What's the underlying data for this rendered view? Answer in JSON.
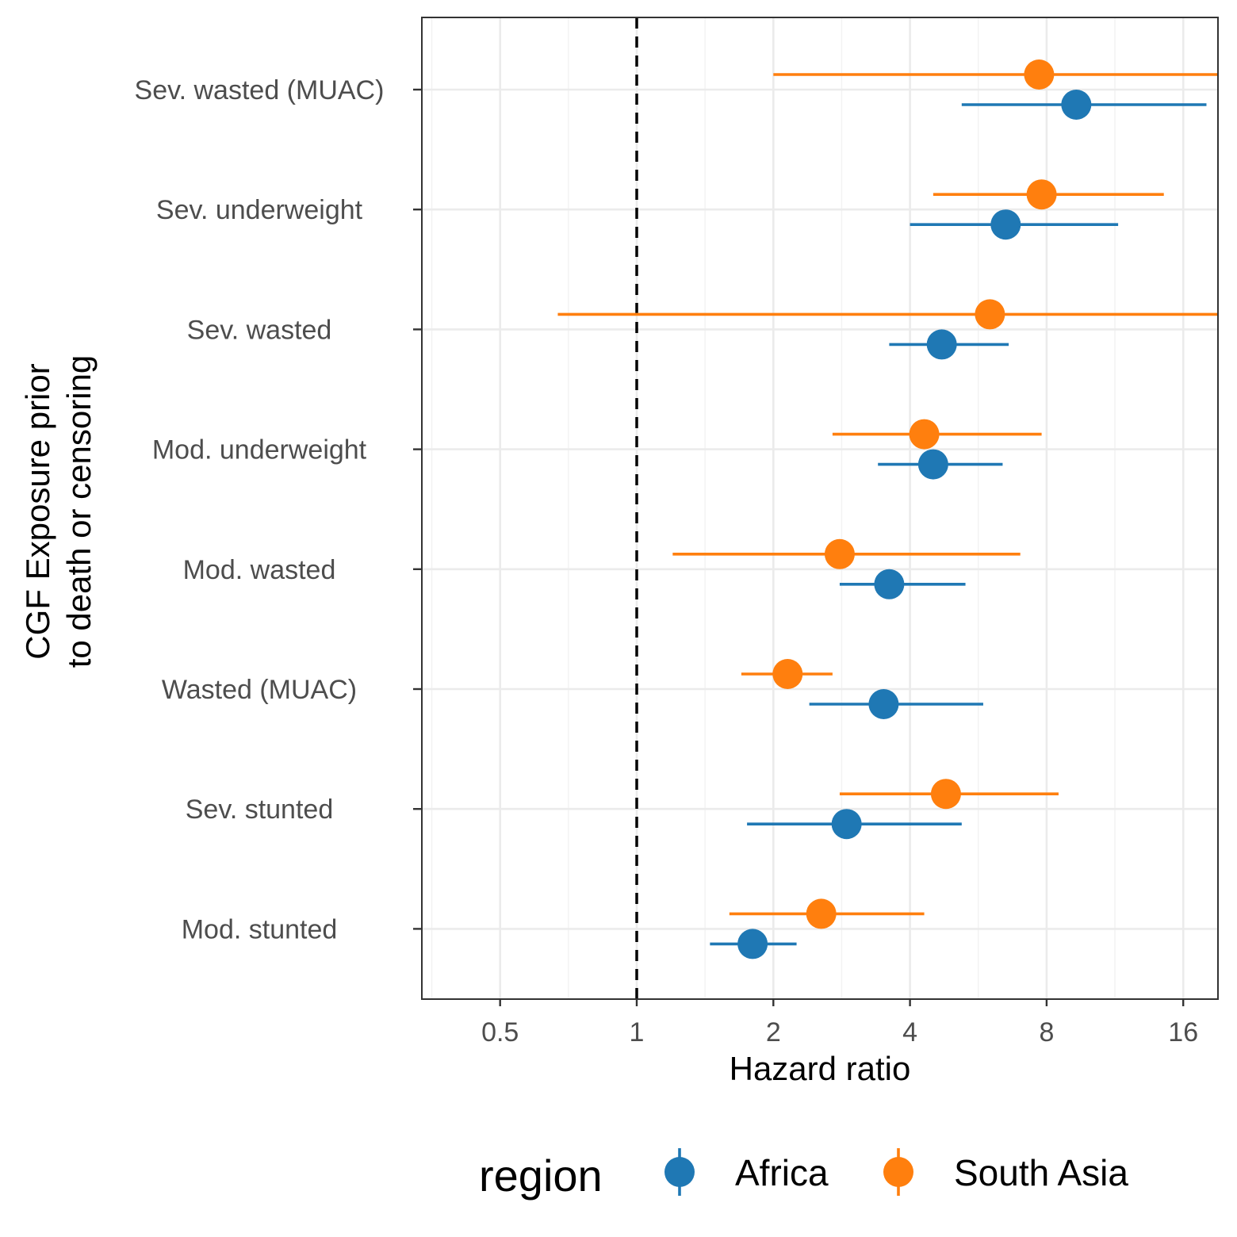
{
  "chart_data": {
    "type": "scatter",
    "subtype": "forest-plot",
    "title": "",
    "xlabel": "Hazard ratio",
    "ylabel_lines": [
      "CGF Exposure prior",
      "to death or censoring"
    ],
    "x_scale": "log2",
    "xlim": [
      0.4,
      20
    ],
    "x_ticks": [
      {
        "value": 0.5,
        "label": "0.5"
      },
      {
        "value": 1,
        "label": "1"
      },
      {
        "value": 2,
        "label": "2"
      },
      {
        "value": 4,
        "label": "4"
      },
      {
        "value": 8,
        "label": "8"
      },
      {
        "value": 16,
        "label": "16"
      }
    ],
    "reference_line": {
      "value": 1,
      "style": "dashed"
    },
    "grid": true,
    "categories": [
      "Sev. wasted (MUAC)",
      "Sev. underweight",
      "Sev. wasted",
      "Mod. underweight",
      "Mod. wasted",
      "Wasted (MUAC)",
      "Sev. stunted",
      "Mod. stunted"
    ],
    "series": [
      {
        "name": "Africa",
        "color": "#1f78b4",
        "points": [
          {
            "category": "Sev. wasted (MUAC)",
            "est": 9.3,
            "lo": 5.2,
            "hi": 18.0
          },
          {
            "category": "Sev. underweight",
            "est": 6.5,
            "lo": 4.0,
            "hi": 11.5
          },
          {
            "category": "Sev. wasted",
            "est": 4.7,
            "lo": 3.6,
            "hi": 6.6
          },
          {
            "category": "Mod. underweight",
            "est": 4.5,
            "lo": 3.4,
            "hi": 6.4
          },
          {
            "category": "Mod. wasted",
            "est": 3.6,
            "lo": 2.8,
            "hi": 5.3
          },
          {
            "category": "Wasted (MUAC)",
            "est": 3.5,
            "lo": 2.4,
            "hi": 5.8
          },
          {
            "category": "Sev. stunted",
            "est": 2.9,
            "lo": 1.75,
            "hi": 5.2
          },
          {
            "category": "Mod. stunted",
            "est": 1.8,
            "lo": 1.45,
            "hi": 2.25
          }
        ]
      },
      {
        "name": "South Asia",
        "color": "#ff7f0e",
        "points": [
          {
            "category": "Sev. wasted (MUAC)",
            "est": 7.7,
            "lo": 2.0,
            "hi": 23.0
          },
          {
            "category": "Sev. underweight",
            "est": 7.8,
            "lo": 4.5,
            "hi": 14.5
          },
          {
            "category": "Sev. wasted",
            "est": 6.0,
            "lo": 0.67,
            "hi": 25.0
          },
          {
            "category": "Mod. underweight",
            "est": 4.3,
            "lo": 2.7,
            "hi": 7.8
          },
          {
            "category": "Mod. wasted",
            "est": 2.8,
            "lo": 1.2,
            "hi": 7.0
          },
          {
            "category": "Wasted (MUAC)",
            "est": 2.15,
            "lo": 1.7,
            "hi": 2.7
          },
          {
            "category": "Sev. stunted",
            "est": 4.8,
            "lo": 2.8,
            "hi": 8.5
          },
          {
            "category": "Mod. stunted",
            "est": 2.55,
            "lo": 1.6,
            "hi": 4.3
          }
        ]
      }
    ],
    "legend": {
      "title": "region",
      "position": "bottom",
      "entries": [
        {
          "label": "Africa",
          "color": "#1f78b4"
        },
        {
          "label": "South Asia",
          "color": "#ff7f0e"
        }
      ]
    }
  }
}
